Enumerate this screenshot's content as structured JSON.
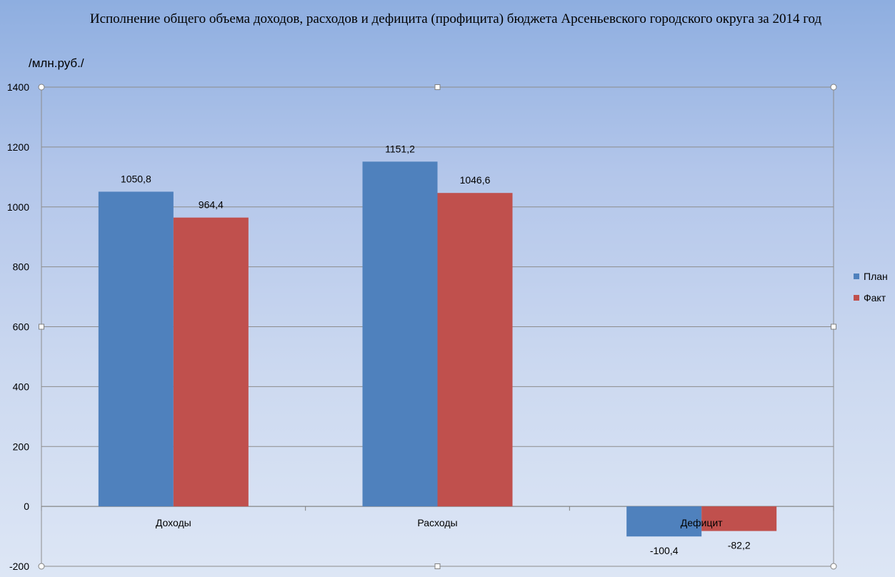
{
  "chart_data": {
    "type": "bar",
    "title": "Исполнение общего объема доходов, расходов и дефицита (профицита) бюджета Арсеньевского городского округа за 2014 год",
    "ylabel": "/млн.руб./",
    "categories": [
      "Доходы",
      "Расходы",
      "Дефицит"
    ],
    "series": [
      {
        "name": "План",
        "values": [
          1050.8,
          1151.2,
          -100.4
        ],
        "color": "#4f81bd"
      },
      {
        "name": "Факт",
        "values": [
          964.4,
          1046.6,
          -82.2
        ],
        "color": "#c0504d"
      }
    ],
    "data_labels": [
      [
        "1050,8",
        "1151,2",
        "-100,4"
      ],
      [
        "964,4",
        "1046,6",
        "-82,2"
      ]
    ],
    "ylim": [
      -200,
      1400
    ],
    "yticks": [
      -200,
      0,
      200,
      400,
      600,
      800,
      1000,
      1200,
      1400
    ],
    "grid": true,
    "legend_position": "right"
  }
}
